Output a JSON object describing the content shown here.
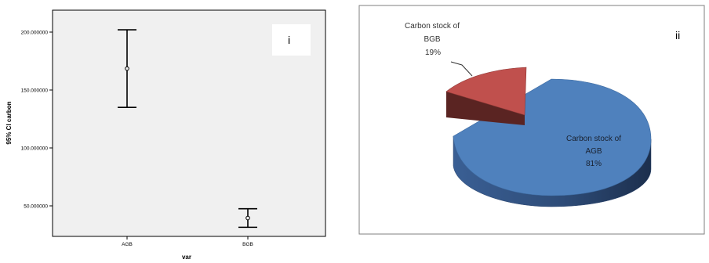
{
  "chart_data": [
    {
      "type": "errorbar",
      "panel_label": "i",
      "xlabel": "var",
      "ylabel": "95% CI carbon",
      "categories": [
        "AGB",
        "BGB"
      ],
      "means": [
        168.5,
        39.5
      ],
      "lower": [
        135.0,
        31.5
      ],
      "upper": [
        202.0,
        47.5
      ],
      "ylim": [
        30,
        210
      ],
      "yticks": [
        50,
        100,
        150,
        200
      ],
      "ytick_labels": [
        "50.000000",
        "100.000000",
        "150.000000",
        "200.000000"
      ],
      "background": "#f0f0f0",
      "grid": false
    },
    {
      "type": "pie",
      "panel_label": "ii",
      "slices": [
        {
          "label_line1": "Carbon stock of",
          "label_line2": "AGB",
          "percent_label": "81%",
          "value": 81,
          "color": "#4f81bd",
          "exploded": false
        },
        {
          "label_line1": "Carbon stock of",
          "label_line2": "BGB",
          "percent_label": "19%",
          "value": 19,
          "color": "#c0504d",
          "exploded": true
        }
      ],
      "style": "3d"
    }
  ]
}
